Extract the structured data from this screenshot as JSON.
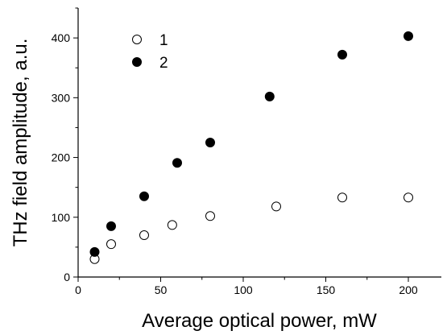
{
  "chart_data": {
    "type": "scatter",
    "xlabel": "Average optical power, mW",
    "ylabel": "THz field amplitude, a.u.",
    "xlim": [
      0,
      220
    ],
    "ylim": [
      0,
      450
    ],
    "xticks": [
      0,
      50,
      100,
      150,
      200
    ],
    "yticks": [
      0,
      100,
      200,
      300,
      400
    ],
    "legend_position": "top-left",
    "grid": false,
    "series": [
      {
        "name": "1",
        "marker": "open-circle",
        "color": "#000000",
        "x": [
          10,
          20,
          40,
          57,
          80,
          120,
          160,
          200
        ],
        "y": [
          30,
          55,
          70,
          87,
          102,
          118,
          133,
          133
        ]
      },
      {
        "name": "2",
        "marker": "filled-circle",
        "color": "#000000",
        "x": [
          10,
          20,
          40,
          60,
          80,
          116,
          160,
          200
        ],
        "y": [
          42,
          85,
          135,
          191,
          225,
          302,
          372,
          403
        ]
      }
    ]
  }
}
